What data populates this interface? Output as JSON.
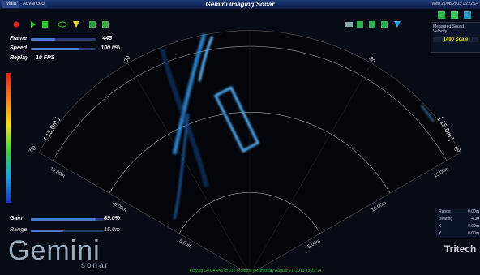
{
  "tabs": [
    "Main",
    "Advanced"
  ],
  "title": "Gemini Imaging Sonar",
  "datetime": "Wed 21/08/2013 15:22:14",
  "playback": {
    "frame": {
      "label": "Frame",
      "value": "445"
    },
    "speed": {
      "label": "Speed",
      "value": "100.0%"
    },
    "replay": {
      "label": "Replay",
      "value": "10 FPS"
    }
  },
  "gain": {
    "label": "Gain",
    "value": "89.0%"
  },
  "range": {
    "label": "Range",
    "value": "15.0m"
  },
  "sound_velocity": {
    "label": "Measured Sound Velocity",
    "value": "1490 Scale"
  },
  "fan": {
    "range_label": "[ 15.0m ]",
    "angles": {
      "left_inner": "-30",
      "right_inner": "30",
      "left_outer": "-60",
      "right_outer": "60"
    },
    "distances": [
      "15.00m",
      "10.00m",
      "5.00m"
    ]
  },
  "cursor": [
    [
      "Range",
      "0.00m"
    ],
    [
      "Bearing",
      "4.30"
    ],
    [
      "X",
      "0.00m"
    ],
    [
      "Y",
      "0.00m"
    ]
  ],
  "logo": {
    "name": "Gemini",
    "sub": "sonar"
  },
  "brand": "Tritech",
  "status": "Playing 14034 445 of 516 Frames, Wednesday August 21, 2013 15:22:14"
}
